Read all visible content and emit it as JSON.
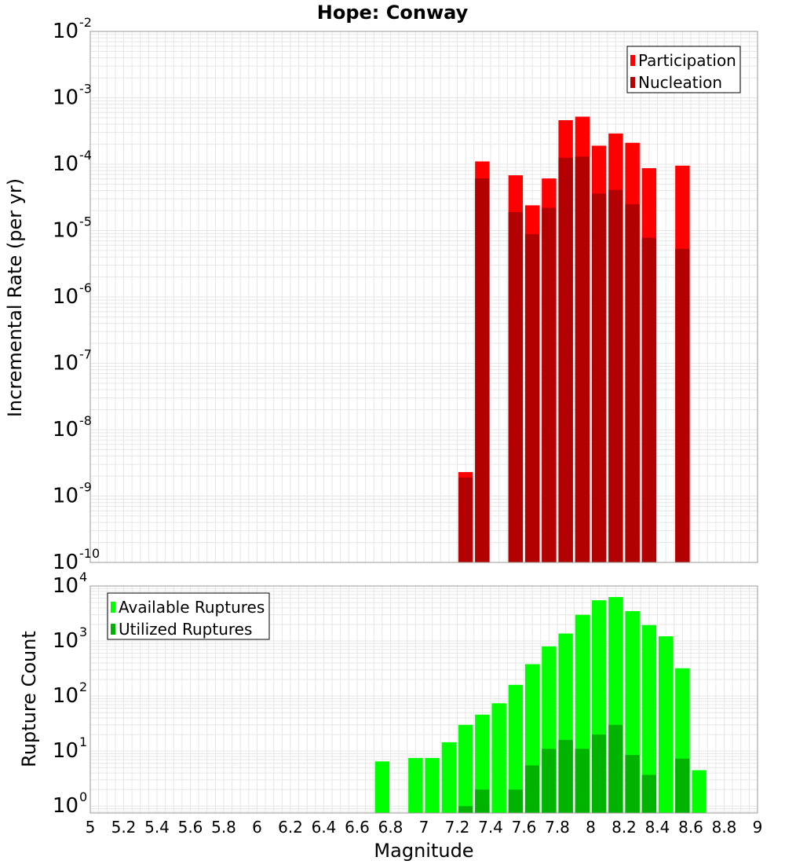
{
  "title": "Hope: Conway",
  "xlabel": "Magnitude",
  "colors": {
    "participation": "#ff0000",
    "nucleation": "#b30000",
    "available": "#00ff00",
    "utilized": "#00b300",
    "grid": "#e6e6e6",
    "frame": "#999999"
  },
  "chart_data": [
    {
      "type": "bar",
      "ylabel": "Incremental Rate (per yr)",
      "yscale": "log",
      "ylim": [
        1e-10,
        0.01
      ],
      "xlim": [
        5,
        9
      ],
      "x_ticks": [
        "5",
        "5.2",
        "5.4",
        "5.6",
        "5.8",
        "6",
        "6.2",
        "6.4",
        "6.6",
        "6.8",
        "7",
        "7.2",
        "7.4",
        "7.6",
        "7.8",
        "8",
        "8.2",
        "8.4",
        "8.6",
        "8.8",
        "9"
      ],
      "y_ticks": [
        {
          "base": "10",
          "exp": "-2"
        },
        {
          "base": "10",
          "exp": "-3"
        },
        {
          "base": "10",
          "exp": "-4"
        },
        {
          "base": "10",
          "exp": "-5"
        },
        {
          "base": "10",
          "exp": "-6"
        },
        {
          "base": "10",
          "exp": "-7"
        },
        {
          "base": "10",
          "exp": "-8"
        },
        {
          "base": "10",
          "exp": "-9"
        },
        {
          "base": "10",
          "exp": "-10"
        }
      ],
      "legend": {
        "position": "top-right",
        "items": [
          "Participation",
          "Nucleation"
        ]
      },
      "x": [
        7.25,
        7.35,
        7.55,
        7.65,
        7.75,
        7.85,
        7.95,
        8.05,
        8.15,
        8.25,
        8.35,
        8.55
      ],
      "series": [
        {
          "name": "Participation",
          "values": [
            2.3e-09,
            0.00011,
            6.8e-05,
            2.4e-05,
            6.1e-05,
            0.00046,
            0.00052,
            0.00019,
            0.00029,
            0.00021,
            8.7e-05,
            9.5e-05
          ]
        },
        {
          "name": "Nucleation",
          "values": [
            1.9e-09,
            6.1e-05,
            1.9e-05,
            8.8e-06,
            2.2e-05,
            0.000125,
            0.00013,
            3.6e-05,
            4.1e-05,
            2.5e-05,
            7.8e-06,
            5.3e-06
          ]
        }
      ]
    },
    {
      "type": "bar",
      "ylabel": "Rupture Count",
      "yscale": "log",
      "ylim": [
        0.75,
        10000
      ],
      "xlim": [
        5,
        9
      ],
      "y_ticks": [
        {
          "base": "10",
          "exp": "4"
        },
        {
          "base": "10",
          "exp": "3"
        },
        {
          "base": "10",
          "exp": "2"
        },
        {
          "base": "10",
          "exp": "1"
        },
        {
          "base": "10",
          "exp": "0"
        }
      ],
      "legend": {
        "position": "top-left",
        "items": [
          "Available Ruptures",
          "Utilized Ruptures"
        ]
      },
      "x": [
        6.75,
        6.95,
        7.05,
        7.15,
        7.25,
        7.35,
        7.45,
        7.55,
        7.65,
        7.75,
        7.85,
        7.95,
        8.05,
        8.15,
        8.25,
        8.35,
        8.45,
        8.55,
        8.65
      ],
      "series": [
        {
          "name": "Available Ruptures",
          "values": [
            6.5,
            7.5,
            7.5,
            14.5,
            30,
            46,
            74,
            160,
            380,
            800,
            1370,
            3000,
            5500,
            6300,
            3500,
            1950,
            1220,
            320,
            4.5
          ]
        },
        {
          "name": "Utilized Ruptures",
          "values": [
            0,
            0,
            0,
            0,
            1,
            2,
            0,
            2,
            5.5,
            11,
            16,
            11,
            20,
            30,
            8.5,
            3.7,
            0,
            7.3,
            0
          ]
        }
      ]
    }
  ]
}
